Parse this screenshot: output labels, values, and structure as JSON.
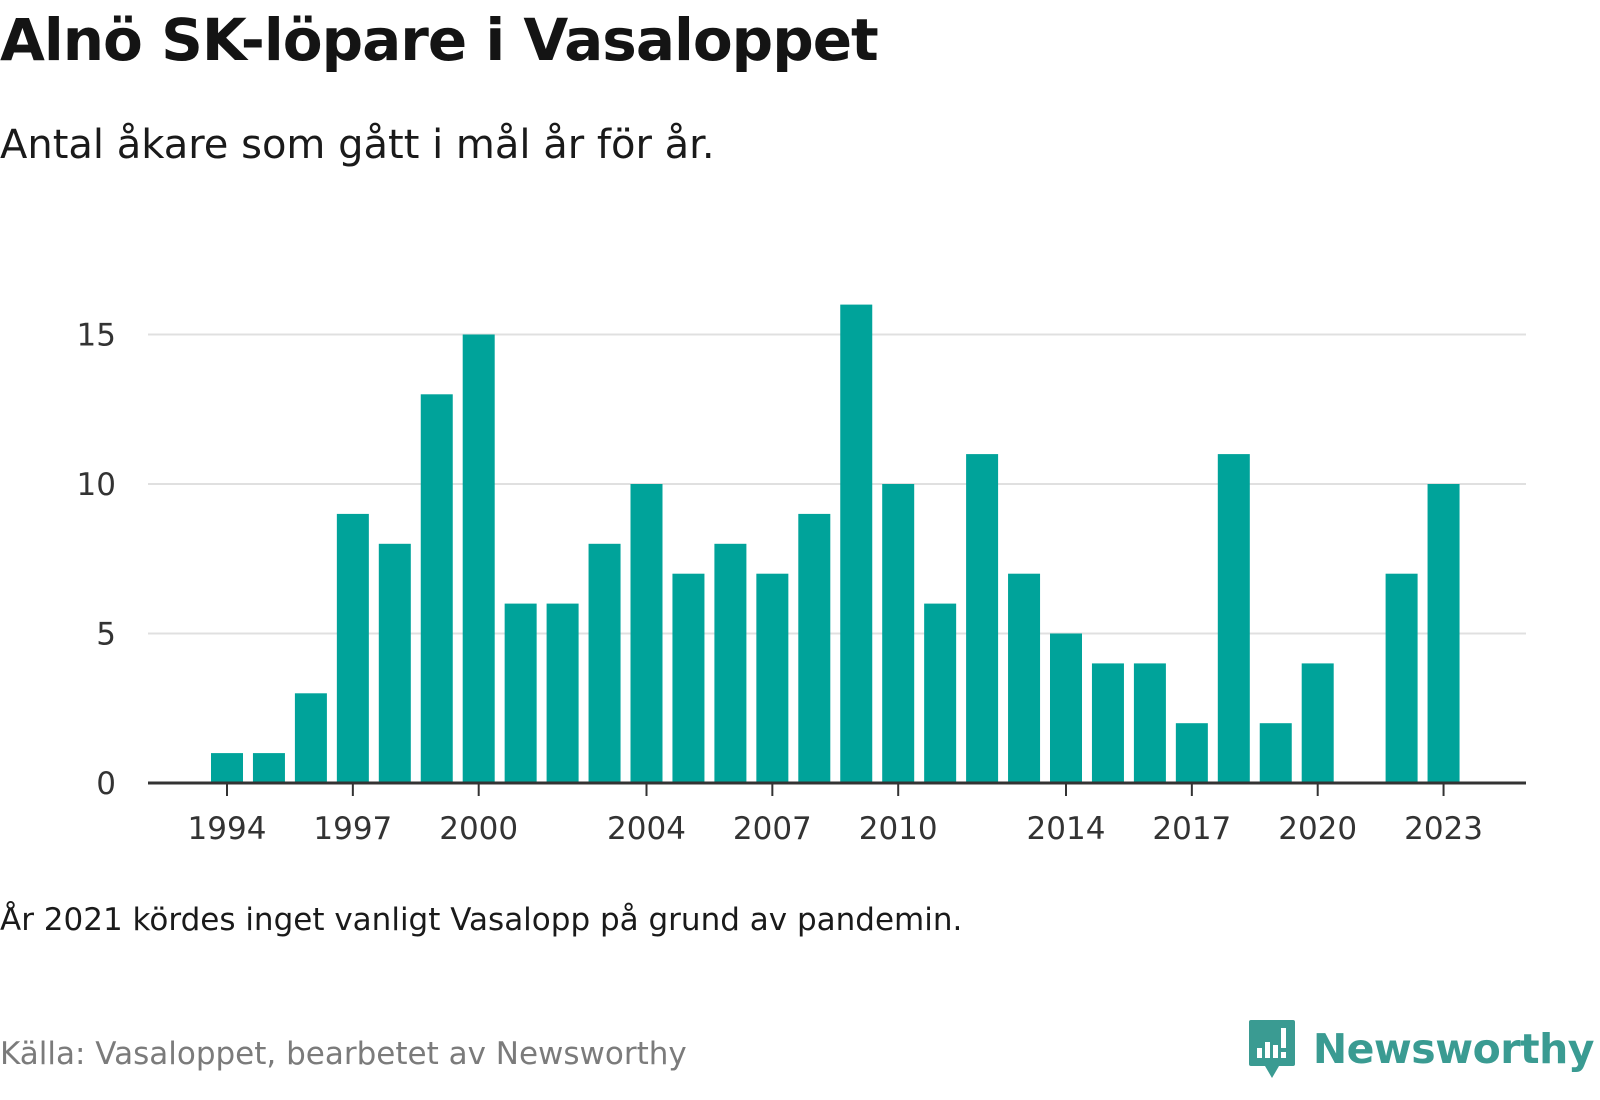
{
  "header": {
    "title": "Alnö SK-löpare i Vasaloppet",
    "subtitle": "Antal åkare som gått i mål år för år."
  },
  "footer": {
    "note": "År 2021 kördes inget vanligt Vasalopp på grund av pandemin.",
    "source": "Källa: Vasaloppet, bearbetet av Newsworthy",
    "brand": "Newsworthy"
  },
  "colors": {
    "bar": "#00a39a",
    "grid": "#e0e0e0",
    "axis": "#333333",
    "brand": "#3a9b92"
  },
  "chart_data": {
    "type": "bar",
    "categories": [
      "1994",
      "1995",
      "1996",
      "1997",
      "1998",
      "1999",
      "2000",
      "2001",
      "2002",
      "2003",
      "2004",
      "2005",
      "2006",
      "2007",
      "2008",
      "2009",
      "2010",
      "2011",
      "2012",
      "2013",
      "2014",
      "2015",
      "2016",
      "2017",
      "2018",
      "2019",
      "2020",
      "2021",
      "2022",
      "2023"
    ],
    "values": [
      1,
      1,
      3,
      9,
      8,
      13,
      15,
      6,
      6,
      8,
      10,
      7,
      8,
      7,
      9,
      16,
      10,
      6,
      11,
      7,
      5,
      4,
      4,
      2,
      11,
      2,
      4,
      null,
      7,
      10
    ],
    "x_tick_labels": [
      "1994",
      "1997",
      "2000",
      "2004",
      "2007",
      "2010",
      "2014",
      "2017",
      "2020",
      "2023"
    ],
    "y_ticks": [
      0,
      5,
      10,
      15
    ],
    "ylim": [
      0,
      16
    ],
    "xlabel": "",
    "ylabel": "",
    "grid": true,
    "legend": "none"
  }
}
